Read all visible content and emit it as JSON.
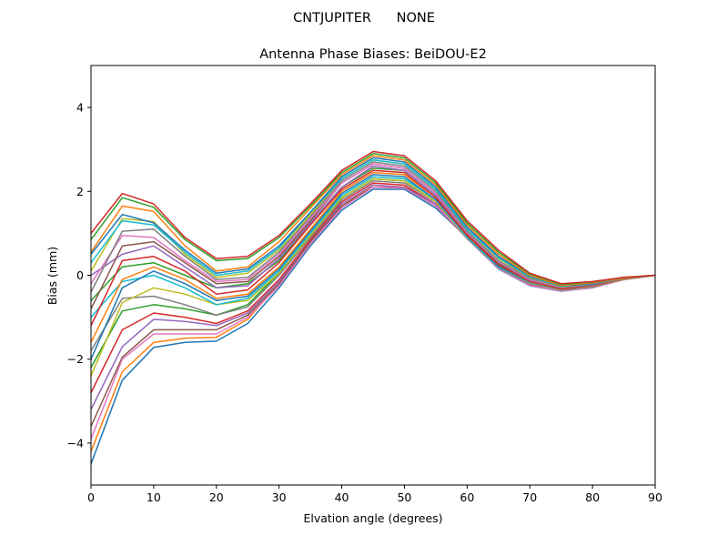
{
  "chart_data": {
    "type": "line",
    "suptitle": "CNTJUPITER      NONE",
    "title": "Antenna Phase Biases: BeiDOU-E2",
    "xlabel": "Elvation angle (degrees)",
    "ylabel": "Bias (mm)",
    "xlim": [
      0,
      90
    ],
    "ylim": [
      -5,
      5
    ],
    "xticks": [
      0,
      10,
      20,
      30,
      40,
      50,
      60,
      70,
      80,
      90
    ],
    "yticks": [
      -4,
      -2,
      0,
      2,
      4
    ],
    "grid": false,
    "colors": [
      "#1f77b4",
      "#ff7f0e",
      "#2ca02c",
      "#d62728",
      "#9467bd",
      "#8c564b",
      "#e377c2",
      "#7f7f7f",
      "#bcbd22",
      "#17becf"
    ],
    "x": [
      0,
      5,
      10,
      15,
      20,
      25,
      30,
      35,
      40,
      45,
      50,
      55,
      60,
      65,
      70,
      75,
      80,
      85,
      90
    ],
    "series": [
      {
        "values": [
          -4.5,
          -2.5,
          -1.72,
          -1.6,
          -1.57,
          -1.15,
          -0.3,
          0.7,
          1.55,
          2.05,
          2.05,
          1.6,
          0.9,
          0.15,
          -0.25,
          -0.38,
          -0.3,
          -0.1,
          0
        ]
      },
      {
        "values": [
          -4.2,
          -2.3,
          -1.6,
          -1.5,
          -1.48,
          -1.05,
          -0.2,
          0.8,
          1.65,
          2.15,
          2.1,
          1.65,
          0.95,
          0.2,
          -0.22,
          -0.35,
          -0.28,
          -0.1,
          0
        ]
      },
      {
        "values": [
          -2.2,
          -0.85,
          -0.7,
          -0.8,
          -0.95,
          -0.7,
          0.05,
          0.95,
          1.85,
          2.3,
          2.25,
          1.75,
          0.92,
          0.2,
          -0.19,
          -0.34,
          -0.27,
          -0.09,
          0
        ]
      },
      {
        "values": [
          -2.8,
          -1.3,
          -0.9,
          -1.0,
          -1.15,
          -0.85,
          -0.1,
          0.85,
          1.75,
          2.2,
          2.15,
          1.7,
          0.9,
          0.18,
          -0.21,
          -0.36,
          -0.28,
          -0.1,
          0
        ]
      },
      {
        "values": [
          -3.2,
          -1.7,
          -1.05,
          -1.1,
          -1.2,
          -0.9,
          -0.15,
          0.8,
          1.7,
          2.15,
          2.1,
          1.7,
          0.88,
          0.17,
          -0.22,
          -0.36,
          -0.29,
          -0.1,
          0
        ]
      },
      {
        "values": [
          -3.6,
          -1.95,
          -1.3,
          -1.3,
          -1.3,
          -0.95,
          -0.2,
          0.8,
          1.65,
          2.1,
          2.1,
          1.65,
          0.88,
          0.16,
          -0.23,
          -0.37,
          -0.29,
          -0.1,
          0
        ]
      },
      {
        "values": [
          -3.9,
          -2.0,
          -1.4,
          -1.4,
          -1.4,
          -1.0,
          -0.25,
          0.75,
          1.6,
          2.1,
          2.08,
          1.65,
          0.9,
          0.16,
          -0.24,
          -0.37,
          -0.3,
          -0.1,
          0
        ]
      },
      {
        "values": [
          -1.8,
          -0.55,
          -0.5,
          -0.7,
          -0.95,
          -0.75,
          0.0,
          0.9,
          1.8,
          2.25,
          2.2,
          1.75,
          0.9,
          0.18,
          -0.2,
          -0.35,
          -0.28,
          -0.09,
          0
        ]
      },
      {
        "values": [
          -2.4,
          -0.65,
          -0.3,
          -0.45,
          -0.7,
          -0.6,
          0.05,
          0.95,
          1.85,
          2.3,
          2.25,
          1.75,
          0.9,
          0.2,
          -0.18,
          -0.35,
          -0.27,
          -0.09,
          0
        ]
      },
      {
        "values": [
          -1.0,
          -0.15,
          0.0,
          -0.3,
          -0.7,
          -0.55,
          0.1,
          1.0,
          1.9,
          2.35,
          2.3,
          1.8,
          0.9,
          0.2,
          -0.17,
          -0.34,
          -0.27,
          -0.09,
          0
        ]
      },
      {
        "values": [
          -2.0,
          -0.3,
          0.1,
          -0.2,
          -0.6,
          -0.5,
          0.15,
          1.05,
          1.95,
          2.4,
          2.35,
          1.8,
          0.95,
          0.22,
          -0.16,
          -0.34,
          -0.26,
          -0.09,
          0
        ]
      },
      {
        "values": [
          -1.6,
          -0.1,
          0.2,
          -0.1,
          -0.55,
          -0.45,
          0.2,
          1.1,
          2.0,
          2.45,
          2.4,
          1.85,
          0.95,
          0.25,
          -0.15,
          -0.33,
          -0.26,
          -0.09,
          0
        ]
      },
      {
        "values": [
          -0.6,
          0.2,
          0.3,
          0.0,
          -0.3,
          -0.2,
          0.35,
          1.25,
          2.1,
          2.55,
          2.5,
          1.9,
          1.0,
          0.28,
          -0.13,
          -0.31,
          -0.24,
          -0.08,
          0
        ]
      },
      {
        "values": [
          -1.2,
          0.35,
          0.45,
          0.1,
          -0.45,
          -0.35,
          0.3,
          1.2,
          2.05,
          2.5,
          2.45,
          1.85,
          0.95,
          0.25,
          -0.14,
          -0.32,
          -0.25,
          -0.08,
          0
        ]
      },
      {
        "values": [
          0.0,
          0.5,
          0.7,
          0.2,
          -0.3,
          -0.25,
          0.4,
          1.25,
          2.1,
          2.6,
          2.5,
          1.9,
          1.0,
          0.3,
          -0.12,
          -0.3,
          -0.24,
          -0.08,
          0
        ]
      },
      {
        "values": [
          -0.8,
          0.7,
          0.8,
          0.3,
          -0.2,
          -0.15,
          0.45,
          1.3,
          2.2,
          2.65,
          2.55,
          1.95,
          1.0,
          0.3,
          -0.1,
          -0.3,
          -0.23,
          -0.08,
          0
        ]
      },
      {
        "values": [
          -0.2,
          0.95,
          0.9,
          0.35,
          -0.15,
          -0.1,
          0.5,
          1.35,
          2.2,
          2.65,
          2.55,
          1.95,
          1.02,
          0.32,
          -0.1,
          -0.29,
          -0.22,
          -0.07,
          0
        ]
      },
      {
        "values": [
          -0.4,
          1.05,
          1.1,
          0.45,
          -0.1,
          -0.05,
          0.55,
          1.4,
          2.25,
          2.7,
          2.6,
          2.0,
          1.05,
          0.35,
          -0.08,
          -0.28,
          -0.22,
          -0.07,
          0
        ]
      },
      {
        "values": [
          0.1,
          1.35,
          1.28,
          0.5,
          -0.05,
          0.05,
          0.6,
          1.45,
          2.3,
          2.75,
          2.65,
          2.05,
          1.1,
          0.4,
          -0.05,
          -0.27,
          -0.2,
          -0.07,
          0
        ]
      },
      {
        "values": [
          0.3,
          1.3,
          1.2,
          0.55,
          0.0,
          0.1,
          0.65,
          1.5,
          2.3,
          2.75,
          2.65,
          2.05,
          1.1,
          0.42,
          -0.04,
          -0.26,
          -0.2,
          -0.06,
          0
        ]
      },
      {
        "values": [
          0.5,
          1.45,
          1.25,
          0.6,
          0.05,
          0.15,
          0.7,
          1.5,
          2.35,
          2.8,
          2.7,
          2.1,
          1.15,
          0.45,
          -0.02,
          -0.25,
          -0.2,
          -0.06,
          0
        ]
      },
      {
        "values": [
          0.55,
          1.65,
          1.52,
          0.7,
          0.1,
          0.2,
          0.8,
          1.6,
          2.4,
          2.85,
          2.75,
          2.15,
          1.2,
          0.5,
          0,
          -0.24,
          -0.18,
          -0.06,
          0
        ]
      },
      {
        "values": [
          0.85,
          1.85,
          1.62,
          0.85,
          0.35,
          0.4,
          0.9,
          1.65,
          2.45,
          2.9,
          2.8,
          2.2,
          1.25,
          0.55,
          0.03,
          -0.22,
          -0.16,
          -0.05,
          0
        ]
      },
      {
        "values": [
          1.0,
          1.95,
          1.7,
          0.9,
          0.4,
          0.45,
          0.95,
          1.7,
          2.5,
          2.95,
          2.85,
          2.25,
          1.3,
          0.6,
          0.05,
          -0.2,
          -0.15,
          -0.05,
          0
        ]
      }
    ]
  }
}
